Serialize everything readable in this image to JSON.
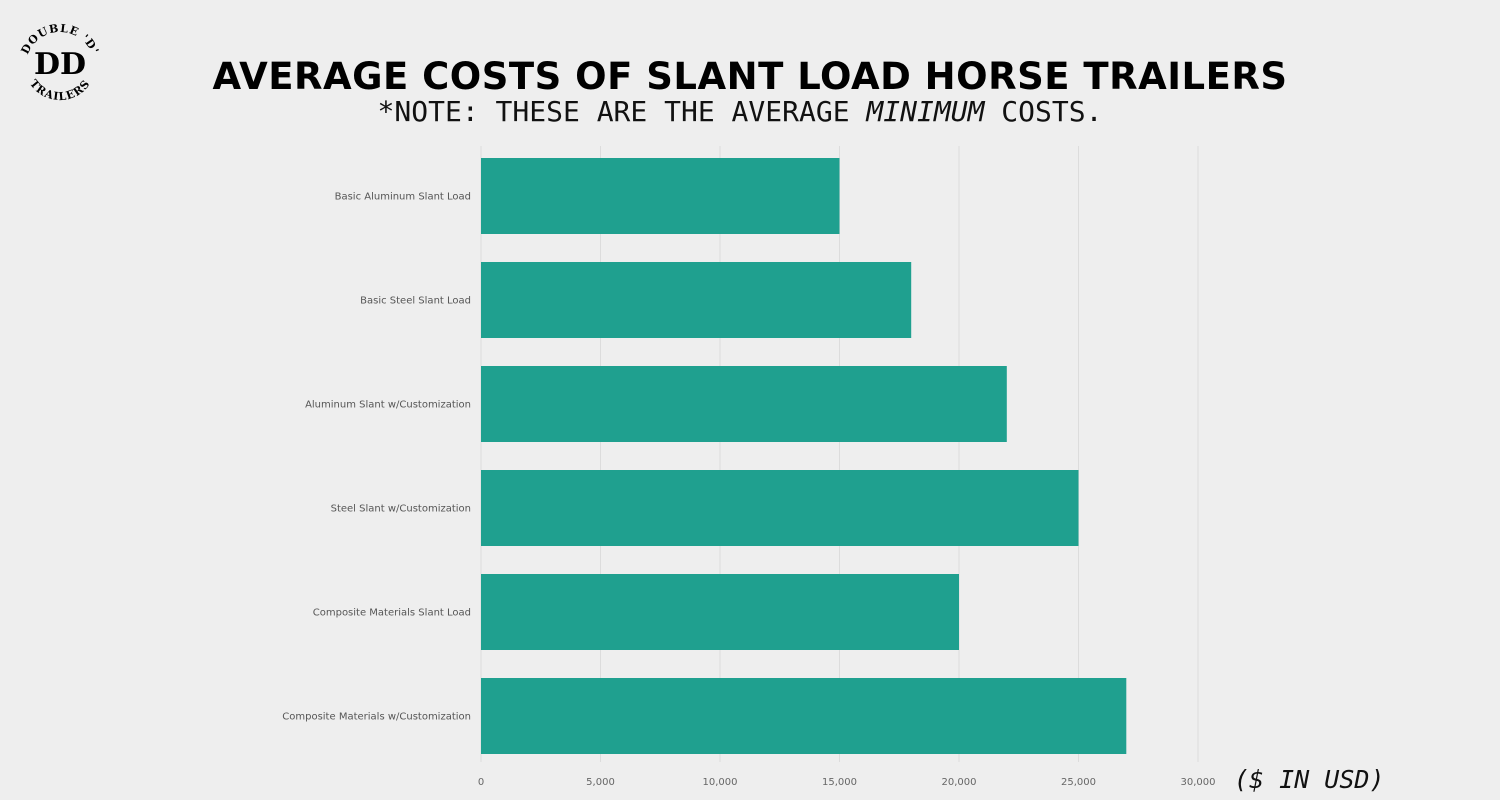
{
  "title": "AVERAGE COSTS OF SLANT LOAD HORSE TRAILERS",
  "subtitle_prefix": "*NOTE: THESE ARE THE AVERAGE ",
  "subtitle_emph": "MINIMUM",
  "subtitle_suffix": " COSTS.",
  "unit_note": "($ IN USD)",
  "logo": {
    "top_text": "DOUBLE 'D'",
    "monogram": "DD",
    "bottom_text": "TRAILERS"
  },
  "colors": {
    "bar": "#1fa08f",
    "background": "#eeeeee",
    "grid": "#dcdcdc"
  },
  "chart_data": {
    "type": "bar",
    "orientation": "horizontal",
    "categories": [
      "Basic Aluminum Slant Load",
      "Basic Steel Slant Load",
      "Aluminum Slant w/Customization",
      "Steel Slant w/Customization",
      "Composite Materials Slant Load",
      "Composite Materials w/Customization"
    ],
    "values": [
      15000,
      18000,
      22000,
      25000,
      20000,
      27000
    ],
    "xlim": [
      0,
      30000
    ],
    "xticks": [
      0,
      5000,
      10000,
      15000,
      20000,
      25000,
      30000
    ],
    "xtick_labels": [
      "0",
      "5,000",
      "10,000",
      "15,000",
      "20,000",
      "25,000",
      "30,000"
    ],
    "grid": true
  }
}
